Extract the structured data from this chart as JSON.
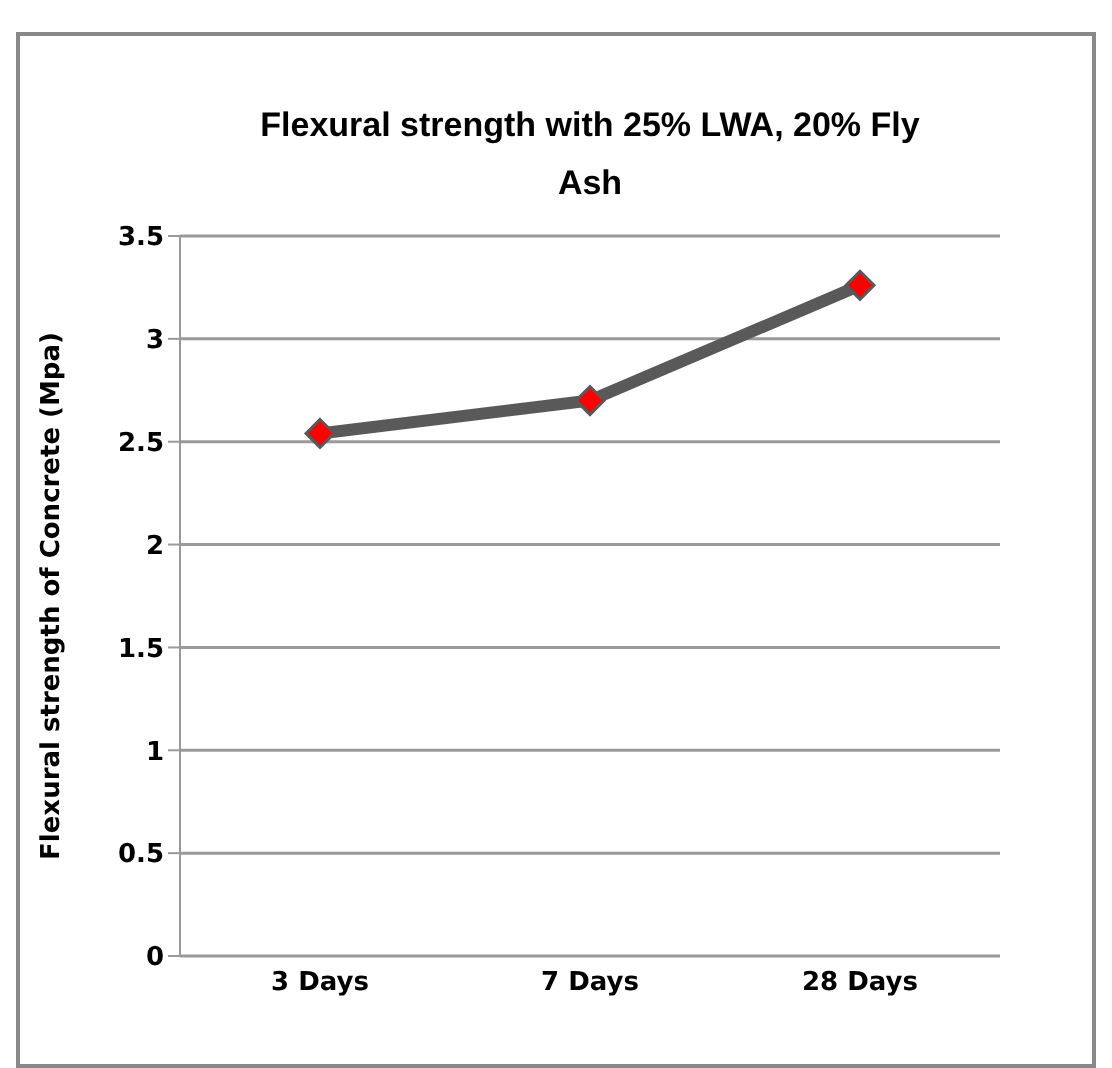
{
  "chart_data": {
    "type": "line",
    "title": "Flexural strength with 25% LWA, 20% Fly Ash",
    "ylabel": "Flexural strength of Concrete (Mpa)",
    "categories": [
      "3 Days",
      "7 Days",
      "28 Days"
    ],
    "series": [
      {
        "color": "#595959",
        "values": [
          2.54,
          2.7,
          3.26
        ]
      }
    ],
    "marker": "diamond",
    "ylim": [
      0,
      3.5
    ],
    "yticks": [
      0,
      0.5,
      1,
      1.5,
      2,
      2.5,
      3,
      3.5
    ],
    "grid": "y",
    "legend": false
  }
}
